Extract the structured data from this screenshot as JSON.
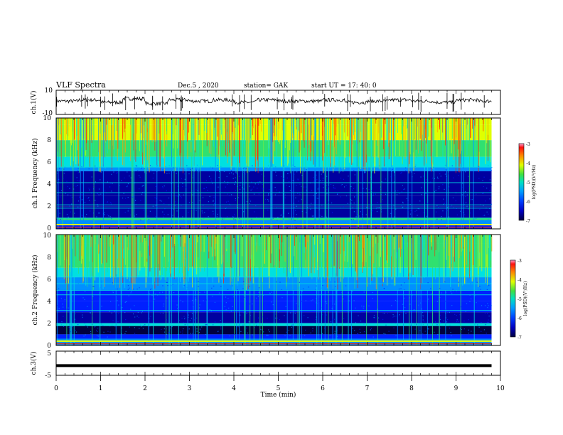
{
  "header": {
    "title": "VLF Spectra",
    "date": "Dec.5 , 2020",
    "station": "station= GAK",
    "start": "start UT = 17: 40: 0"
  },
  "colors": {
    "colormap": [
      "#000040",
      "#0000a0",
      "#0020ff",
      "#0090ff",
      "#00e0e0",
      "#30e070",
      "#e0ff00",
      "#ffa000",
      "#ff2000",
      "#ff80c0"
    ]
  },
  "chart_data": [
    {
      "type": "line",
      "id": "ch1-waveform",
      "ylabel": "ch.1(V)",
      "ylim": [
        -10,
        10
      ],
      "yticks": [
        "10",
        "-10"
      ],
      "x": [
        0,
        0.5,
        1,
        1.5,
        2,
        2.5,
        3,
        3.5,
        4,
        4.5,
        5,
        5.5,
        6,
        6.5,
        7,
        7.5,
        8,
        8.5,
        9,
        9.5,
        9.8
      ],
      "values": [
        1,
        2,
        0,
        3,
        -1,
        2,
        1,
        2,
        0,
        2,
        1,
        1,
        2,
        0,
        1,
        2,
        1,
        0,
        2,
        1,
        1
      ]
    },
    {
      "type": "heatmap",
      "id": "ch1-spectrogram",
      "ylabel": "ch.1 Frequency (kHz)",
      "ylim": [
        0,
        10
      ],
      "yticks": [
        "0",
        "2",
        "4",
        "6",
        "8",
        "10"
      ],
      "xlim": [
        0,
        9.8
      ],
      "colorbar": {
        "label": "log(PSD)(V²/Hz)",
        "range": [
          -7,
          -3
        ],
        "ticks": [
          "-3",
          "-4",
          "-5",
          "-6",
          "-7"
        ]
      }
    },
    {
      "type": "heatmap",
      "id": "ch2-spectrogram",
      "ylabel": "ch.2 Frequency (kHz)",
      "ylim": [
        0,
        10
      ],
      "yticks": [
        "0",
        "2",
        "4",
        "6",
        "8",
        "10"
      ],
      "xlim": [
        0,
        9.8
      ],
      "colorbar": {
        "label": "log(PSD)(V²/Hz)",
        "range": [
          -7,
          -3
        ],
        "ticks": [
          "-3",
          "-4",
          "-5",
          "-6",
          "-7"
        ]
      }
    },
    {
      "type": "line",
      "id": "ch3-waveform",
      "ylabel": "ch.3(V)",
      "ylim": [
        -5,
        5
      ],
      "yticks": [
        "5",
        "-5"
      ],
      "x": [
        0,
        9.8
      ],
      "values": [
        -1,
        -1
      ]
    }
  ],
  "xaxis": {
    "label": "Time (min)",
    "ticks": [
      "0",
      "1",
      "2",
      "3",
      "4",
      "5",
      "6",
      "7",
      "8",
      "9",
      "10"
    ]
  }
}
